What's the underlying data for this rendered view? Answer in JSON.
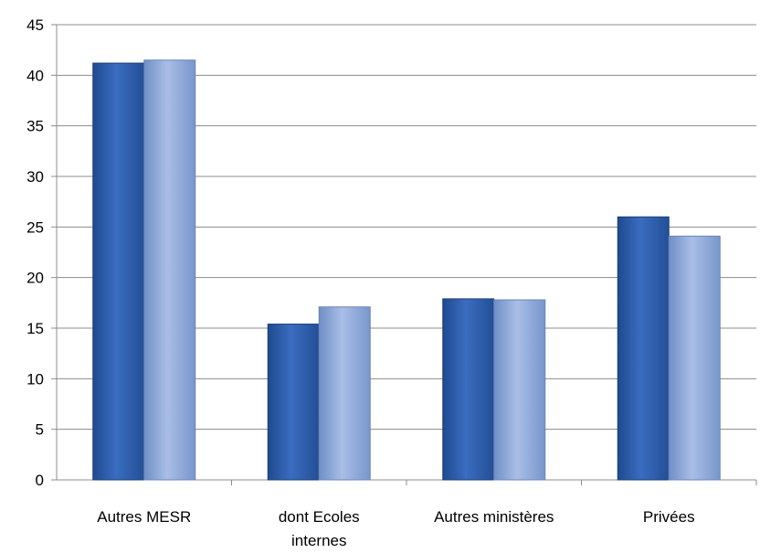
{
  "chart_data": {
    "type": "bar",
    "categories": [
      "Autres MESR",
      "dont Ecoles internes",
      "Autres ministères",
      "Privées"
    ],
    "category_lines": [
      [
        "Autres MESR"
      ],
      [
        "dont Ecoles",
        "internes"
      ],
      [
        "Autres ministères"
      ],
      [
        "Privées"
      ]
    ],
    "series": [
      {
        "values": [
          41.2,
          15.4,
          17.9,
          26.0
        ],
        "color": "#2f5fa8"
      },
      {
        "values": [
          41.5,
          17.1,
          17.8,
          24.1
        ],
        "color": "#8ea8d8"
      }
    ],
    "y_ticks": [
      "0",
      "5",
      "10",
      "15",
      "20",
      "25",
      "30",
      "35",
      "40",
      "45"
    ],
    "ylim": [
      0,
      45
    ],
    "grid": true,
    "legend": "none"
  }
}
